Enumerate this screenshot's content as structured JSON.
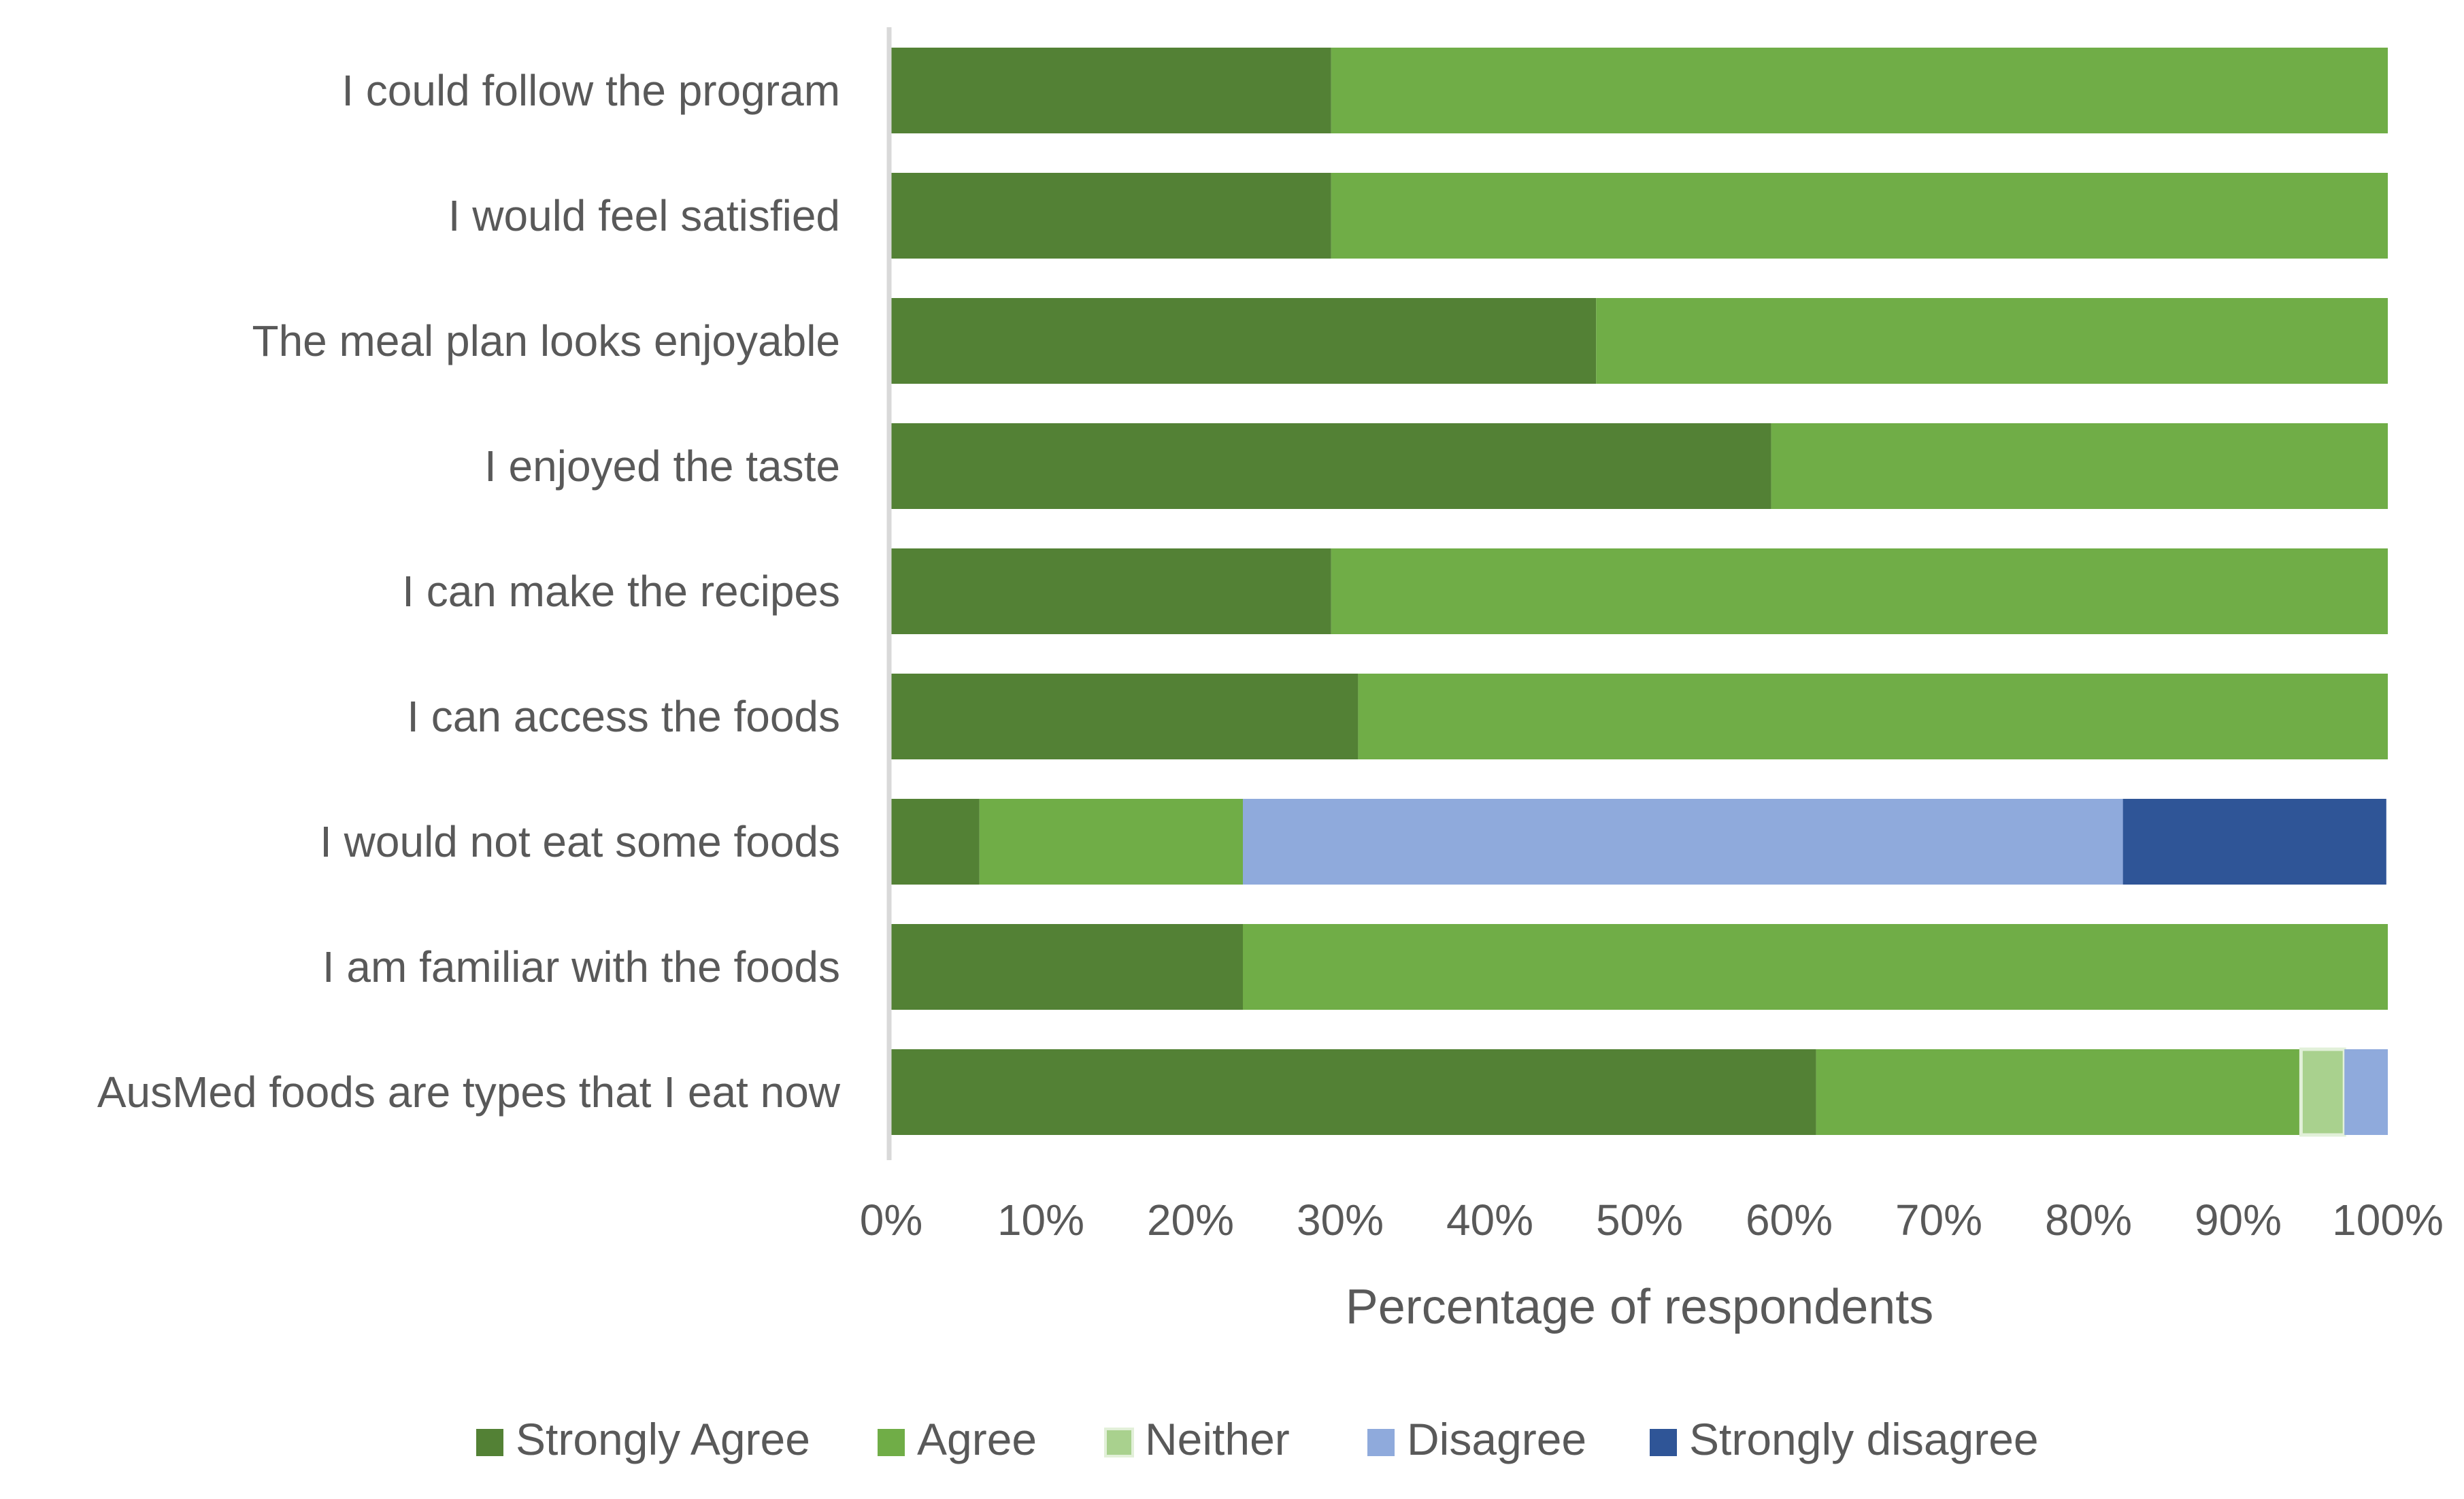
{
  "chart_data": {
    "type": "bar",
    "orientation": "horizontal",
    "stacked": "percent",
    "title": "",
    "xlabel": "Percentage of respondents",
    "ylabel": "",
    "xlim": [
      0,
      100
    ],
    "xticks": [
      0,
      10,
      20,
      30,
      40,
      50,
      60,
      70,
      80,
      90,
      100
    ],
    "xtick_labels": [
      "0%",
      "10%",
      "20%",
      "30%",
      "40%",
      "50%",
      "60%",
      "70%",
      "80%",
      "90%",
      "100%"
    ],
    "grid": false,
    "legend_position": "bottom",
    "categories": [
      "I could follow the program",
      "I would feel satisfied",
      "The meal plan looks enjoyable",
      "I enjoyed the taste",
      "I can make the recipes",
      "I can access the foods",
      "I would not eat some foods",
      "I am familiar with the foods",
      "AusMed foods are types that I eat now"
    ],
    "series": [
      {
        "name": "Strongly Agree",
        "color": "#538135",
        "values": [
          29.4,
          29.4,
          47.1,
          58.8,
          29.4,
          31.2,
          5.9,
          23.5,
          61.8
        ]
      },
      {
        "name": "Agree",
        "color": "#70AD47",
        "values": [
          70.6,
          70.6,
          52.9,
          41.2,
          70.6,
          68.8,
          17.6,
          76.5,
          32.4
        ]
      },
      {
        "name": "Neither",
        "color": "#A9D18E",
        "values": [
          0,
          0,
          0,
          0,
          0,
          0,
          0,
          0,
          2.9
        ]
      },
      {
        "name": "Disagree",
        "color": "#8FAADC",
        "values": [
          0,
          0,
          0,
          0,
          0,
          0,
          58.8,
          0,
          2.9
        ]
      },
      {
        "name": "Strongly disagree",
        "color": "#2F5597",
        "values": [
          0,
          0,
          0,
          0,
          0,
          0,
          17.6,
          0,
          0
        ]
      }
    ]
  },
  "colors": {
    "axis_line": "#D9D9D9",
    "text": "#595959",
    "neither_outline": "#E2F0D9"
  }
}
